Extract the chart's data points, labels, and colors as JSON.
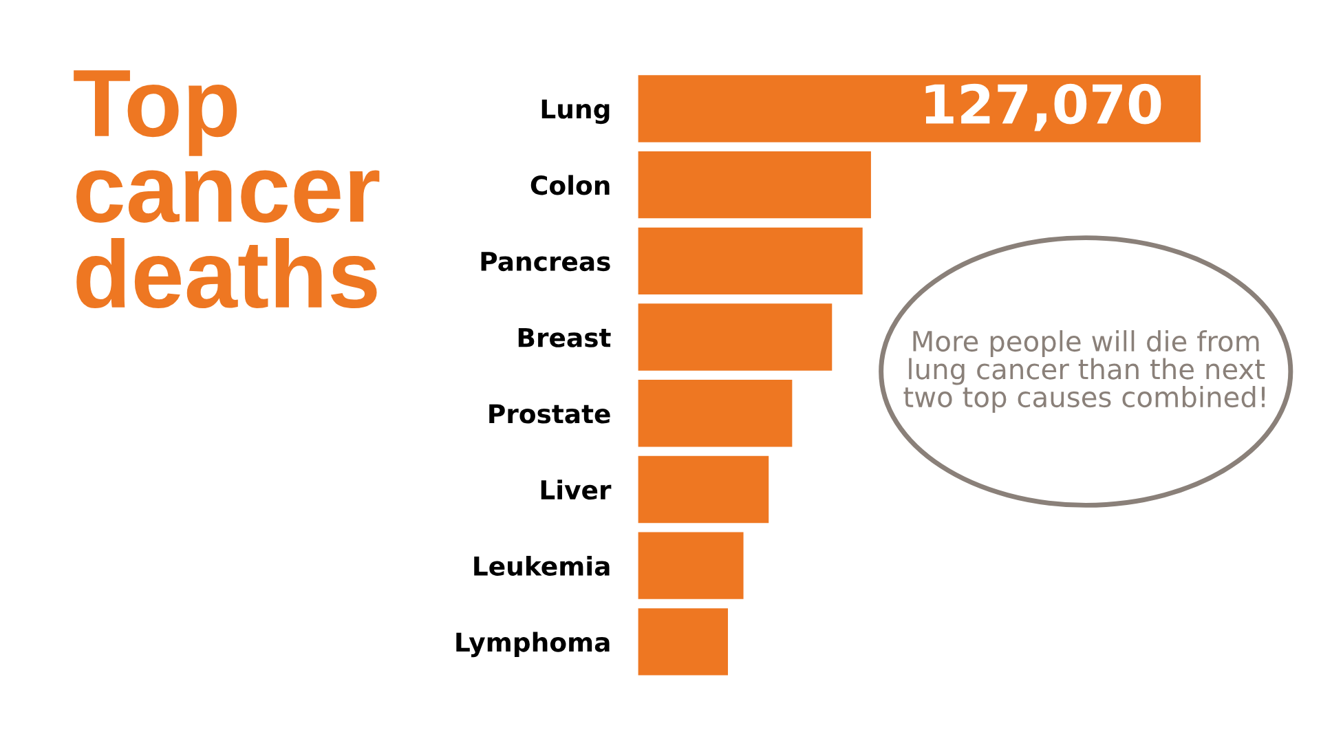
{
  "chart_data": {
    "type": "bar",
    "orientation": "horizontal",
    "tick_labels": "y",
    "title": "Top\ncancer\ndeaths",
    "categories": [
      "Lung",
      "Colon",
      "Pancreas",
      "Breast",
      "Prostate",
      "Liver",
      "Leukemia",
      "Lymphoma"
    ],
    "values": [
      127070,
      52600,
      50700,
      43800,
      34800,
      29500,
      23800,
      20300
    ],
    "value_labels": [
      "127,070",
      null,
      null,
      null,
      null,
      null,
      null,
      null
    ],
    "color": "#ee7722",
    "annotations": [
      "More people will die from\nlung cancer than the next\ntwo top causes combined!"
    ],
    "grid": false
  }
}
